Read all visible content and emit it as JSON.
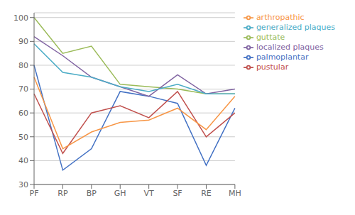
{
  "chart_data": {
    "type": "line",
    "categories": [
      "PF",
      "RP",
      "BP",
      "GH",
      "VT",
      "SF",
      "RE",
      "MH"
    ],
    "series": [
      {
        "name": "palmoplantar",
        "color": "#4472C4",
        "values": [
          80,
          36,
          45,
          69,
          67,
          64,
          38,
          62
        ]
      },
      {
        "name": "pustular",
        "color": "#C0504D",
        "values": [
          68,
          43,
          60,
          63,
          58,
          69,
          50,
          60
        ]
      },
      {
        "name": "guttate",
        "color": "#9BBB59",
        "values": [
          100,
          85,
          88,
          72,
          71,
          70,
          68,
          68
        ]
      },
      {
        "name": "localized plaques",
        "color": "#8064A2",
        "values": [
          92,
          84,
          75,
          71,
          67,
          76,
          68,
          70
        ]
      },
      {
        "name": "generalized plaques",
        "color": "#4BACC6",
        "values": [
          89,
          77,
          75,
          71,
          69,
          72,
          68,
          68
        ]
      },
      {
        "name": "arthropathic",
        "color": "#F79646",
        "values": [
          75,
          45,
          52,
          56,
          57,
          62,
          53,
          67
        ]
      }
    ],
    "ylim": [
      30,
      102
    ],
    "yticks": [
      30,
      40,
      50,
      60,
      70,
      80,
      90,
      100
    ],
    "grid": true,
    "legend": "upper right"
  }
}
